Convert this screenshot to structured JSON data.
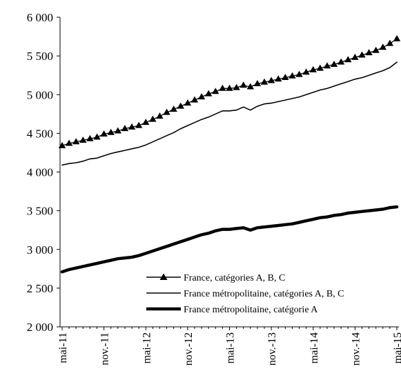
{
  "chart_data": {
    "type": "line",
    "title": "",
    "xlabel": "",
    "ylabel": "",
    "ylim": [
      2000,
      6000
    ],
    "y_ticks": [
      2000,
      2500,
      3000,
      3500,
      4000,
      4500,
      5000,
      5500,
      6000
    ],
    "y_tick_labels": [
      "2 000",
      "2 500",
      "3 000",
      "3 500",
      "4 000",
      "4 500",
      "5 000",
      "5 500",
      "6 000"
    ],
    "x": [
      "mai-11",
      "juin-11",
      "juil.-11",
      "août-11",
      "sept.-11",
      "oct.-11",
      "nov.-11",
      "déc.-11",
      "janv.-12",
      "févr.-12",
      "mars-12",
      "avr.-12",
      "mai-12",
      "juin-12",
      "juil.-12",
      "août-12",
      "sept.-12",
      "oct.-12",
      "nov.-12",
      "déc.-12",
      "janv.-13",
      "févr.-13",
      "mars-13",
      "avr.-13",
      "mai-13",
      "juin-13",
      "juil.-13",
      "août-13",
      "sept.-13",
      "oct.-13",
      "nov.-13",
      "déc.-13",
      "janv.-14",
      "févr.-14",
      "mars-14",
      "avr.-14",
      "mai-14",
      "juin-14",
      "juil.-14",
      "août-14",
      "sept.-14",
      "oct.-14",
      "nov.-14",
      "déc.-14",
      "janv.-15",
      "févr.-15",
      "mars-15",
      "avr.-15",
      "mai-15"
    ],
    "x_tick_labels": [
      "mai-11",
      "nov.-11",
      "mai-12",
      "nov.-12",
      "mai-13",
      "nov.-13",
      "mai-14",
      "nov.-14",
      "mai-15"
    ],
    "x_tick_index": [
      0,
      6,
      12,
      18,
      24,
      30,
      36,
      42,
      48
    ],
    "grid": false,
    "legend_position": "bottom-right",
    "series": [
      {
        "name": "France, catégories A, B, C",
        "style": "thin-triangles",
        "color": "#000000",
        "values": [
          4340,
          4370,
          4390,
          4410,
          4430,
          4450,
          4490,
          4510,
          4530,
          4560,
          4580,
          4600,
          4640,
          4680,
          4720,
          4770,
          4810,
          4850,
          4890,
          4930,
          4970,
          5010,
          5040,
          5080,
          5080,
          5090,
          5120,
          5100,
          5140,
          5160,
          5180,
          5200,
          5220,
          5240,
          5260,
          5290,
          5320,
          5340,
          5370,
          5390,
          5420,
          5450,
          5480,
          5510,
          5540,
          5570,
          5610,
          5660,
          5720
        ]
      },
      {
        "name": "France métropolitaine, catégories A, B, C",
        "style": "thin",
        "color": "#000000",
        "values": [
          4090,
          4110,
          4120,
          4140,
          4170,
          4180,
          4210,
          4240,
          4260,
          4280,
          4300,
          4320,
          4350,
          4390,
          4430,
          4470,
          4510,
          4560,
          4600,
          4640,
          4680,
          4710,
          4750,
          4790,
          4790,
          4800,
          4840,
          4800,
          4850,
          4880,
          4890,
          4910,
          4930,
          4950,
          4970,
          5000,
          5030,
          5060,
          5080,
          5110,
          5140,
          5170,
          5200,
          5220,
          5250,
          5280,
          5310,
          5350,
          5420
        ]
      },
      {
        "name": "France métropolitaine, catégorie A",
        "style": "thick",
        "color": "#000000",
        "values": [
          2710,
          2740,
          2760,
          2780,
          2800,
          2820,
          2840,
          2860,
          2880,
          2890,
          2900,
          2920,
          2950,
          2980,
          3010,
          3040,
          3070,
          3100,
          3130,
          3160,
          3190,
          3210,
          3240,
          3260,
          3260,
          3270,
          3280,
          3250,
          3280,
          3290,
          3300,
          3310,
          3320,
          3330,
          3350,
          3370,
          3390,
          3410,
          3420,
          3440,
          3450,
          3470,
          3480,
          3490,
          3500,
          3510,
          3520,
          3540,
          3550
        ]
      }
    ]
  }
}
